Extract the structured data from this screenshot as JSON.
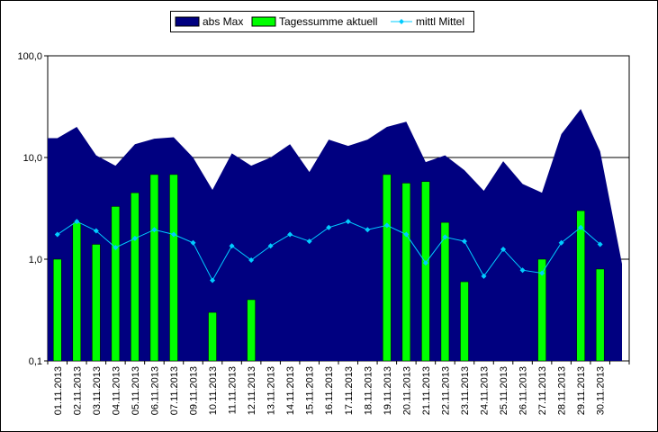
{
  "chart_data": {
    "type": "bar",
    "y_scale": "log",
    "ylim": [
      0.1,
      100
    ],
    "y_ticks": [
      {
        "value": 0.1,
        "label": "0,1"
      },
      {
        "value": 1,
        "label": "1,0"
      },
      {
        "value": 10,
        "label": "10,0"
      },
      {
        "value": 100,
        "label": "100,0"
      }
    ],
    "grid": "horizontal at 1 and 10",
    "legend_position": "top-center",
    "categories": [
      "01.11.2013",
      "02.11.2013",
      "03.11.2013",
      "04.11.2013",
      "05.11.2013",
      "06.11.2013",
      "07.11.2013",
      "09.11.2013",
      "10.11.2013",
      "11.11.2013",
      "12.11.2013",
      "13.11.2013",
      "14.11.2013",
      "15.11.2013",
      "16.11.2013",
      "17.11.2013",
      "18.11.2013",
      "19.11.2013",
      "20.11.2013",
      "21.11.2013",
      "22.11.2013",
      "23.11.2013",
      "24.11.2013",
      "25.11.2013",
      "26.11.2013",
      "27.11.2013",
      "28.11.2013",
      "29.11.2013",
      "30.11.2013"
    ],
    "series": [
      {
        "name": "abs Max",
        "kind": "area",
        "color": "#000080",
        "values": [
          15.5,
          20,
          10.5,
          8.3,
          13.5,
          15.3,
          15.8,
          10,
          4.8,
          11,
          8.3,
          10,
          13.5,
          7.2,
          15,
          13,
          15,
          20,
          22.5,
          9,
          10.5,
          7.5,
          4.7,
          9.2,
          5.5,
          4.5,
          17,
          30,
          11.5
        ]
      },
      {
        "name": "Tagessumme aktuell",
        "kind": "bar",
        "color": "#00ff00",
        "values": [
          1.0,
          2.3,
          1.4,
          3.3,
          4.5,
          6.8,
          6.8,
          null,
          0.3,
          null,
          0.4,
          null,
          null,
          null,
          null,
          null,
          null,
          6.8,
          5.6,
          5.8,
          2.3,
          0.6,
          null,
          null,
          null,
          1.0,
          null,
          3.0,
          0.8
        ]
      },
      {
        "name": "mittl Mittel",
        "kind": "line",
        "color": "#00ccff",
        "values": [
          1.75,
          2.35,
          1.9,
          1.3,
          1.6,
          1.95,
          1.75,
          1.45,
          0.62,
          1.35,
          0.98,
          1.35,
          1.75,
          1.5,
          2.05,
          2.35,
          1.95,
          2.15,
          1.75,
          0.92,
          1.65,
          1.5,
          0.68,
          1.25,
          0.78,
          0.73,
          1.45,
          2.05,
          1.4
        ]
      }
    ],
    "end_value": 0.9
  }
}
